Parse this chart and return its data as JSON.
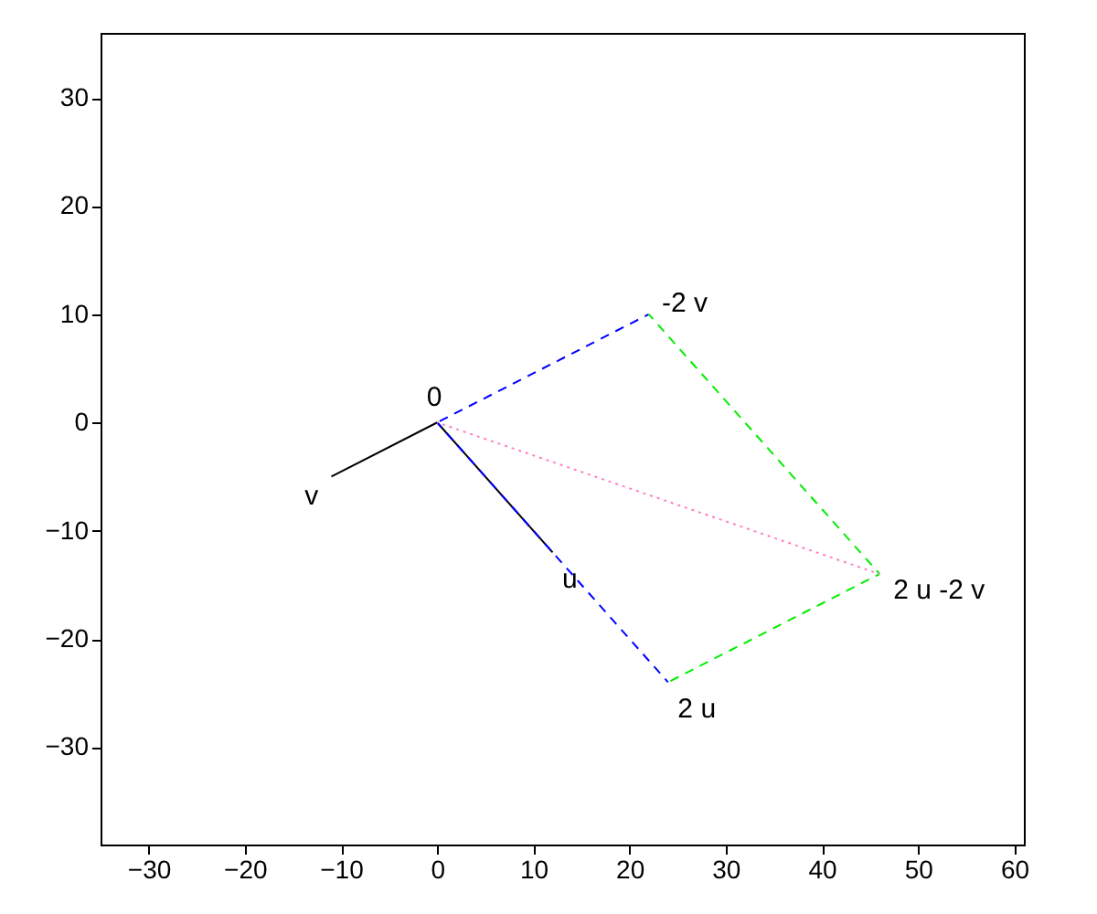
{
  "chart_data": {
    "type": "line",
    "xlim": [
      -35,
      61
    ],
    "ylim": [
      -39,
      36
    ],
    "xticks": [
      -30,
      -20,
      -10,
      0,
      10,
      20,
      30,
      40,
      50,
      60
    ],
    "yticks": [
      -30,
      -20,
      -10,
      0,
      10,
      20,
      30
    ],
    "grid": false,
    "series": [
      {
        "color": "#000000",
        "line_style": "solid",
        "x": [
          0,
          12
        ],
        "values": [
          0,
          -12
        ]
      },
      {
        "color": "#000000",
        "line_style": "solid",
        "x": [
          0,
          -11
        ],
        "values": [
          0,
          -5
        ]
      },
      {
        "color": "#0000ff",
        "line_style": "dashed",
        "x": [
          0,
          24
        ],
        "values": [
          0,
          -24
        ]
      },
      {
        "color": "#0000ff",
        "line_style": "dashed",
        "x": [
          0,
          22
        ],
        "values": [
          0,
          10
        ]
      },
      {
        "color": "#00ee00",
        "line_style": "dashed",
        "x": [
          24,
          46
        ],
        "values": [
          -24,
          -14
        ]
      },
      {
        "color": "#00ee00",
        "line_style": "dashed",
        "x": [
          22,
          46
        ],
        "values": [
          10,
          -14
        ]
      },
      {
        "color": "#ff80c0",
        "line_style": "dotted",
        "x": [
          0,
          46
        ],
        "values": [
          0,
          -14
        ]
      }
    ],
    "annotations": [
      {
        "text": "0",
        "x": 0,
        "y": 0
      },
      {
        "text": "v",
        "x": -11,
        "y": -5
      },
      {
        "text": "u",
        "x": 12,
        "y": -12
      },
      {
        "text": "2 u",
        "x": 24,
        "y": -24
      },
      {
        "text": "-2 v",
        "x": 22,
        "y": 10
      },
      {
        "text": "2 u -2 v",
        "x": 46,
        "y": -14
      }
    ]
  }
}
